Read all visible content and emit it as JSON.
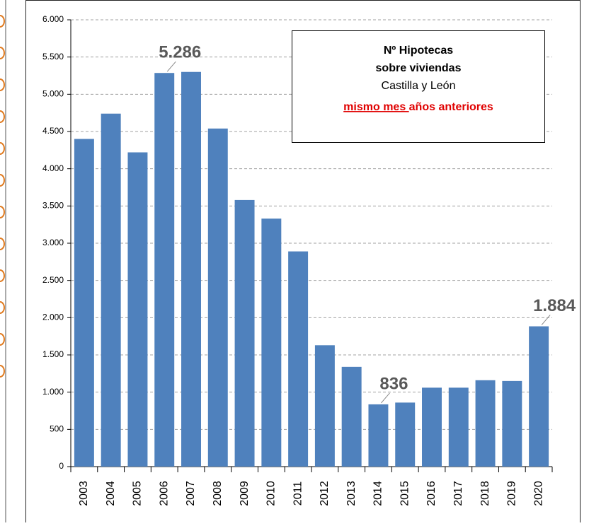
{
  "chart_data": {
    "type": "bar",
    "annotation": {
      "title": [
        "Nº Hipotecas",
        "sobre viviendas"
      ],
      "subtitle": "Castilla y León",
      "note": [
        "mismo mes ",
        "años anteriores"
      ]
    },
    "categories": [
      "2003",
      "2004",
      "2005",
      "2006",
      "2007",
      "2008",
      "2009",
      "2010",
      "2011",
      "2012",
      "2013",
      "2014",
      "2015",
      "2016",
      "2017",
      "2018",
      "2019",
      "2020"
    ],
    "values": [
      4400,
      4740,
      4220,
      5286,
      5300,
      4540,
      3580,
      3330,
      2890,
      1630,
      1340,
      836,
      860,
      1060,
      1060,
      1160,
      1150,
      1884
    ],
    "value_labels": [
      null,
      null,
      null,
      "5.286",
      null,
      null,
      null,
      null,
      null,
      null,
      null,
      "836",
      null,
      null,
      null,
      null,
      null,
      "1.884"
    ],
    "color": "#4f81bd",
    "ylim": [
      0,
      6000
    ],
    "yticks": [
      0,
      500,
      {
        "value": 1000,
        "label": "1.000"
      },
      {
        "value": 1500,
        "label": "1.500"
      },
      {
        "value": 2000,
        "label": "2.000"
      },
      {
        "value": 2500,
        "label": "2.500"
      },
      {
        "value": 3000,
        "label": "3.000"
      },
      {
        "value": 3500,
        "label": "3.500"
      },
      {
        "value": 4000,
        "label": "4.000"
      },
      {
        "value": 4500,
        "label": "4.500"
      },
      {
        "value": 5000,
        "label": "5.000"
      },
      {
        "value": 5500,
        "label": "5.500"
      },
      {
        "value": 6000,
        "label": "6.000"
      }
    ],
    "grid": true
  }
}
